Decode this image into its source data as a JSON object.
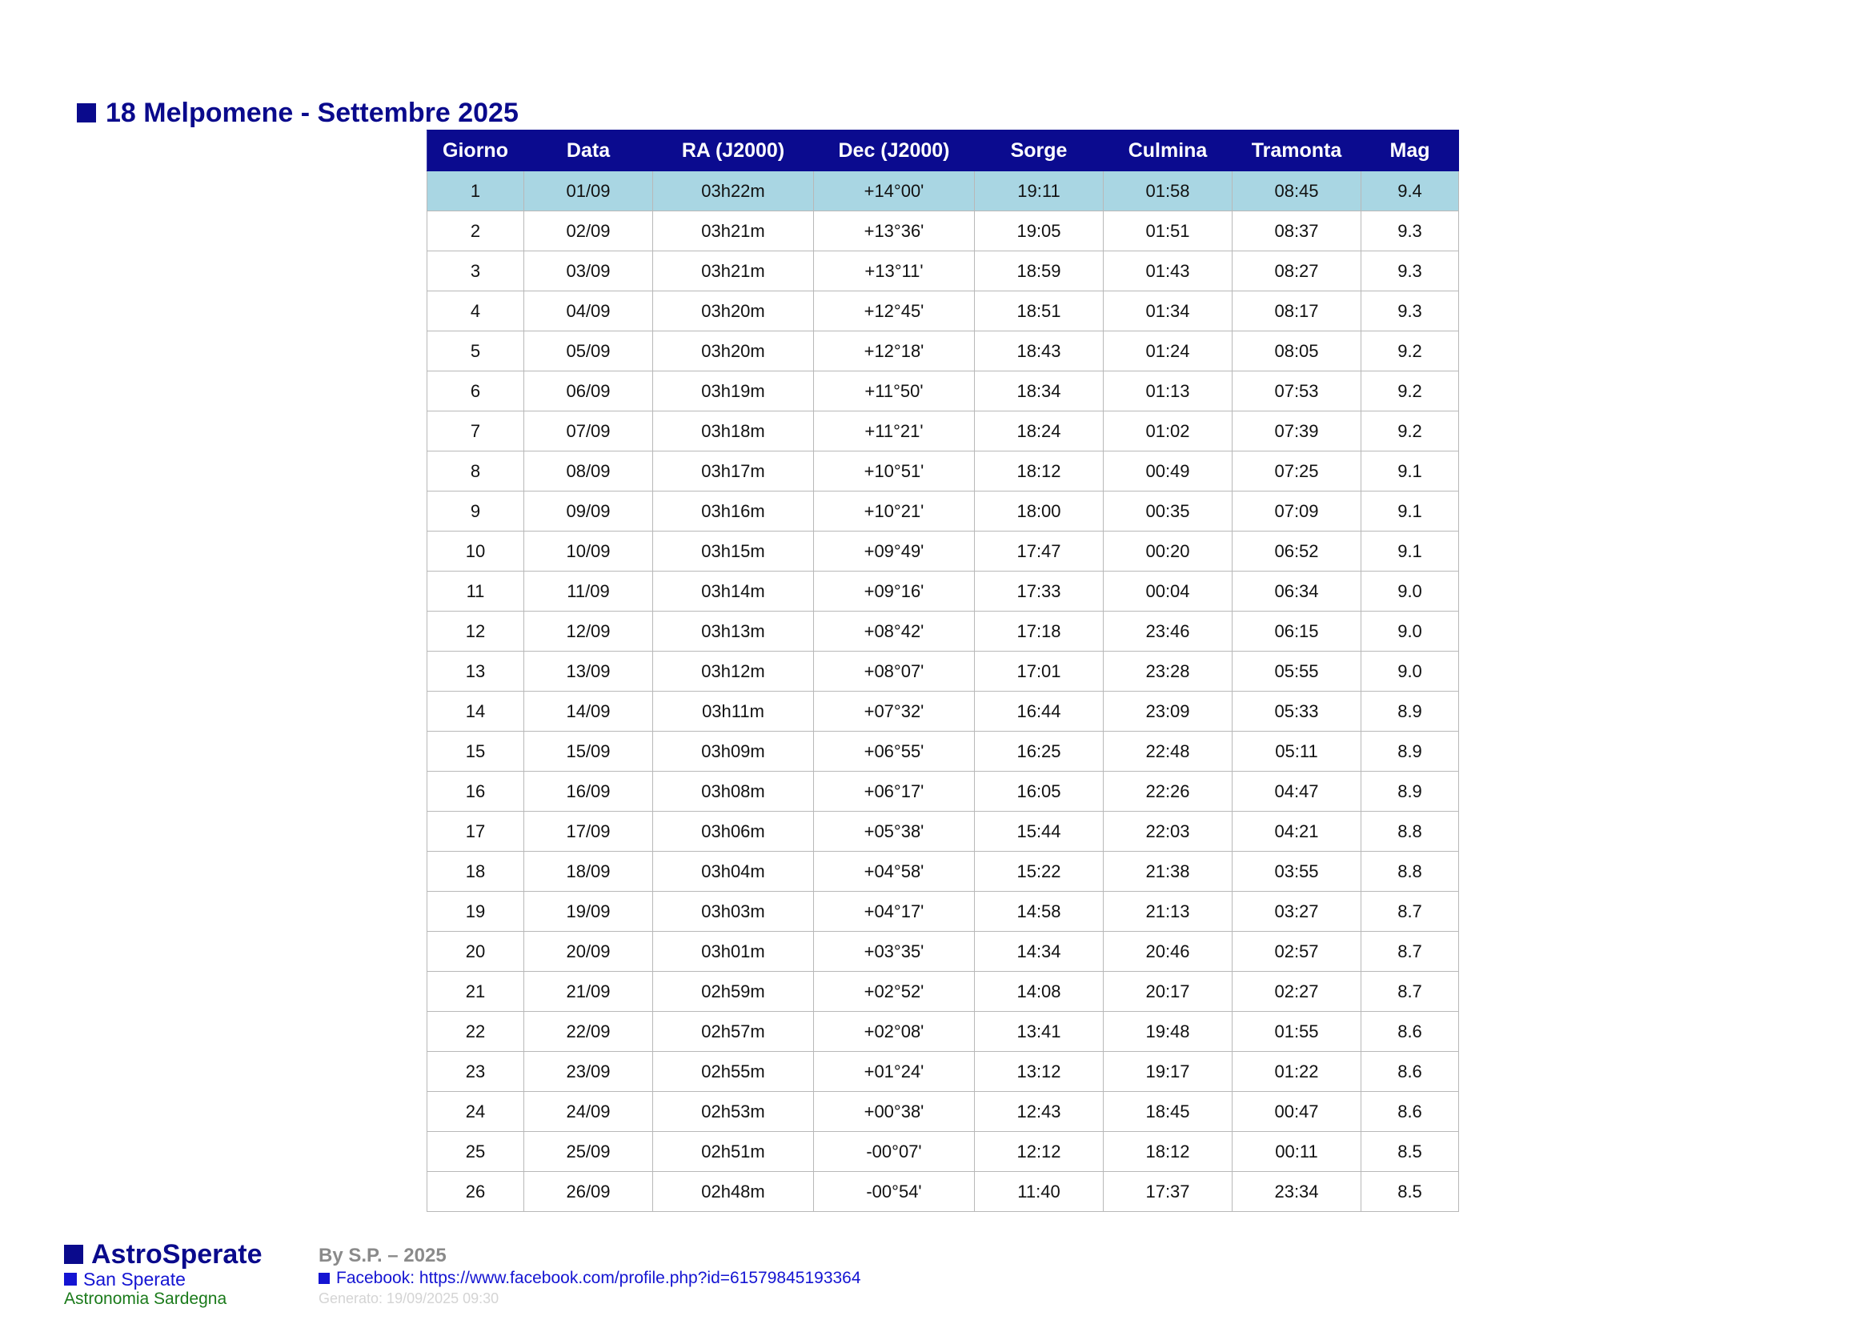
{
  "title": "18 Melpomene - Settembre 2025",
  "columns": [
    "Giorno",
    "Data",
    "RA (J2000)",
    "Dec (J2000)",
    "Sorge",
    "Culmina",
    "Tramonta",
    "Mag"
  ],
  "highlight_row": 0,
  "rows": [
    [
      "1",
      "01/09",
      "03h22m",
      "+14°00'",
      "19:11",
      "01:58",
      "08:45",
      "9.4"
    ],
    [
      "2",
      "02/09",
      "03h21m",
      "+13°36'",
      "19:05",
      "01:51",
      "08:37",
      "9.3"
    ],
    [
      "3",
      "03/09",
      "03h21m",
      "+13°11'",
      "18:59",
      "01:43",
      "08:27",
      "9.3"
    ],
    [
      "4",
      "04/09",
      "03h20m",
      "+12°45'",
      "18:51",
      "01:34",
      "08:17",
      "9.3"
    ],
    [
      "5",
      "05/09",
      "03h20m",
      "+12°18'",
      "18:43",
      "01:24",
      "08:05",
      "9.2"
    ],
    [
      "6",
      "06/09",
      "03h19m",
      "+11°50'",
      "18:34",
      "01:13",
      "07:53",
      "9.2"
    ],
    [
      "7",
      "07/09",
      "03h18m",
      "+11°21'",
      "18:24",
      "01:02",
      "07:39",
      "9.2"
    ],
    [
      "8",
      "08/09",
      "03h17m",
      "+10°51'",
      "18:12",
      "00:49",
      "07:25",
      "9.1"
    ],
    [
      "9",
      "09/09",
      "03h16m",
      "+10°21'",
      "18:00",
      "00:35",
      "07:09",
      "9.1"
    ],
    [
      "10",
      "10/09",
      "03h15m",
      "+09°49'",
      "17:47",
      "00:20",
      "06:52",
      "9.1"
    ],
    [
      "11",
      "11/09",
      "03h14m",
      "+09°16'",
      "17:33",
      "00:04",
      "06:34",
      "9.0"
    ],
    [
      "12",
      "12/09",
      "03h13m",
      "+08°42'",
      "17:18",
      "23:46",
      "06:15",
      "9.0"
    ],
    [
      "13",
      "13/09",
      "03h12m",
      "+08°07'",
      "17:01",
      "23:28",
      "05:55",
      "9.0"
    ],
    [
      "14",
      "14/09",
      "03h11m",
      "+07°32'",
      "16:44",
      "23:09",
      "05:33",
      "8.9"
    ],
    [
      "15",
      "15/09",
      "03h09m",
      "+06°55'",
      "16:25",
      "22:48",
      "05:11",
      "8.9"
    ],
    [
      "16",
      "16/09",
      "03h08m",
      "+06°17'",
      "16:05",
      "22:26",
      "04:47",
      "8.9"
    ],
    [
      "17",
      "17/09",
      "03h06m",
      "+05°38'",
      "15:44",
      "22:03",
      "04:21",
      "8.8"
    ],
    [
      "18",
      "18/09",
      "03h04m",
      "+04°58'",
      "15:22",
      "21:38",
      "03:55",
      "8.8"
    ],
    [
      "19",
      "19/09",
      "03h03m",
      "+04°17'",
      "14:58",
      "21:13",
      "03:27",
      "8.7"
    ],
    [
      "20",
      "20/09",
      "03h01m",
      "+03°35'",
      "14:34",
      "20:46",
      "02:57",
      "8.7"
    ],
    [
      "21",
      "21/09",
      "02h59m",
      "+02°52'",
      "14:08",
      "20:17",
      "02:27",
      "8.7"
    ],
    [
      "22",
      "22/09",
      "02h57m",
      "+02°08'",
      "13:41",
      "19:48",
      "01:55",
      "8.6"
    ],
    [
      "23",
      "23/09",
      "02h55m",
      "+01°24'",
      "13:12",
      "19:17",
      "01:22",
      "8.6"
    ],
    [
      "24",
      "24/09",
      "02h53m",
      "+00°38'",
      "12:43",
      "18:45",
      "00:47",
      "8.6"
    ],
    [
      "25",
      "25/09",
      "02h51m",
      "-00°07'",
      "12:12",
      "18:12",
      "00:11",
      "8.5"
    ],
    [
      "26",
      "26/09",
      "02h48m",
      "-00°54'",
      "11:40",
      "17:37",
      "23:34",
      "8.5"
    ]
  ],
  "footer": {
    "brand": "AstroSperate",
    "subtitle": "San Sperate",
    "region": "Astronomia Sardegna",
    "author": "By S.P. – 2025",
    "facebook": "Facebook: https://www.facebook.com/profile.php?id=61579845193364",
    "generated": "Generato: 19/09/2025 09:30"
  },
  "colors": {
    "primary": "#0b0b8f",
    "highlight": "#a9d6e3",
    "link": "#1414d2",
    "region": "#1a7a1a",
    "muted": "#8a8a8a"
  }
}
